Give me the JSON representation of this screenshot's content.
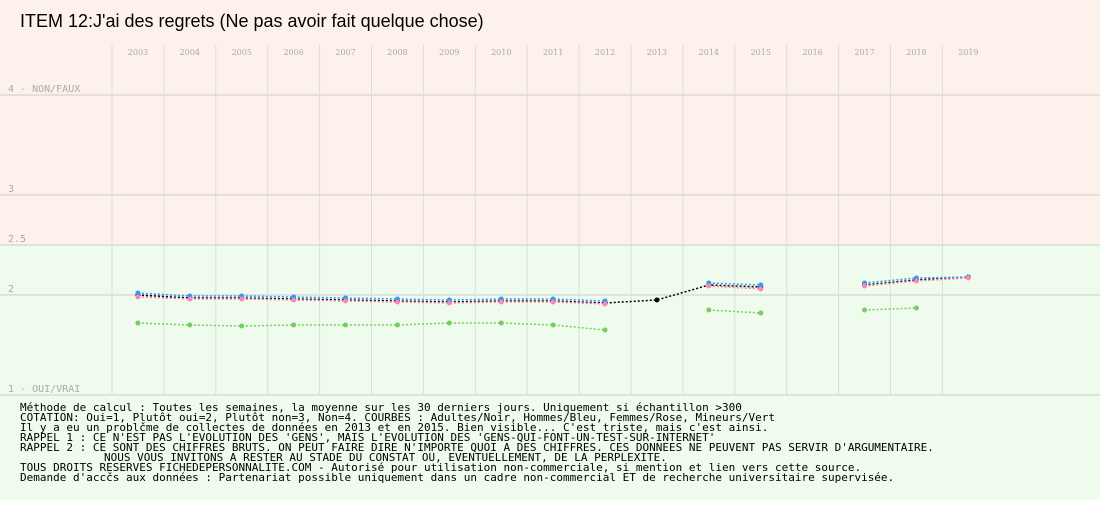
{
  "chart_data": {
    "type": "scatter",
    "title": "ITEM 12:J'ai des regrets (Ne pas avoir fait quelque chose)",
    "categories": [
      "2003",
      "2004",
      "2005",
      "2006",
      "2007",
      "2008",
      "2009",
      "2010",
      "2011",
      "2012",
      "2013",
      "2014",
      "2015",
      "2016",
      "2017",
      "2018",
      "2019"
    ],
    "series": [
      {
        "name": "Adultes",
        "color": "#000000",
        "values": [
          2.0,
          1.97,
          1.97,
          1.96,
          1.95,
          1.94,
          1.93,
          1.94,
          1.94,
          1.92,
          1.95,
          2.1,
          2.08,
          null,
          2.1,
          2.15,
          2.18
        ]
      },
      {
        "name": "Hommes",
        "color": "#3399ff",
        "values": [
          2.02,
          1.99,
          1.99,
          1.98,
          1.97,
          1.96,
          1.95,
          1.96,
          1.96,
          1.94,
          null,
          2.12,
          2.1,
          null,
          2.12,
          2.17,
          2.18
        ]
      },
      {
        "name": "Femmes",
        "color": "#ff88aa",
        "values": [
          1.98,
          1.96,
          1.96,
          1.95,
          1.94,
          1.93,
          1.92,
          1.93,
          1.93,
          1.91,
          null,
          2.09,
          2.06,
          null,
          2.09,
          2.14,
          2.17
        ]
      },
      {
        "name": "Mineurs",
        "color": "#77cc66",
        "values": [
          1.72,
          1.7,
          1.69,
          1.7,
          1.7,
          1.7,
          1.72,
          1.72,
          1.7,
          1.65,
          null,
          1.85,
          1.82,
          null,
          1.85,
          1.87,
          null
        ]
      }
    ],
    "ylim": [
      1,
      4.5
    ],
    "yticks": [
      {
        "value": 1,
        "label": "1 - OUI/VRAI"
      },
      2,
      2.5,
      3,
      {
        "value": 4,
        "label": "4 - NON/FAUX"
      }
    ],
    "grid": true,
    "notes": [
      "Méthode de calcul : Toutes les semaines, la moyenne sur les 30 derniers jours. Uniquement si échantillon >300",
      "COTATION: Oui=1, Plutôt oui=2, Plutôt non=3, Non=4. COURBES : Adultes/Noir, Hommes/Bleu, Femmes/Rose, Mineurs/Vert",
      "Il y a eu un problčme de collectes de données en 2013 et en 2015. Bien visible... C'est triste, mais c'est ainsi.",
      "RAPPEL 1 : CE N'EST PAS L'EVOLUTION DES 'GENS', MAIS L'EVOLUTION DES 'GENS-QUI-FONT-UN-TEST-SUR-INTERNET'",
      "RAPPEL 2 : CE SONT DES CHIFFRES BRUTS. ON PEUT FAIRE DIRE N'IMPORTE QUOI A DES CHIFFRES. CES DONNEES NE PEUVENT PAS SERVIR D'ARGUMENTAIRE.",
      "NOUS VOUS INVITONS A RESTER AU STADE DU CONSTAT OU, EVENTUELLEMENT,  DE LA PERPLEXITE.",
      "TOUS DROITS RESERVES FICHEDEPERSONNALITE.COM - Autorisé pour utilisation non-commerciale, si mention et lien vers cette source.",
      "Demande d'accčs aux données : Partenariat possible uniquement dans un cadre non-commercial ET de recherche universitaire supervisée."
    ]
  }
}
